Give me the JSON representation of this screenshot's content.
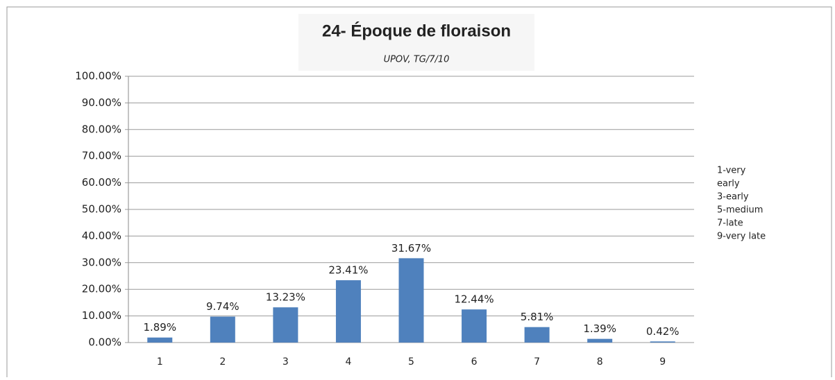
{
  "chart_data": {
    "type": "bar",
    "title": "24- Époque de floraison",
    "subtitle": "UPOV, TG/7/10",
    "categories": [
      "1",
      "2",
      "3",
      "4",
      "5",
      "6",
      "7",
      "8",
      "9"
    ],
    "values": [
      1.89,
      9.74,
      13.23,
      23.41,
      31.67,
      12.44,
      5.81,
      1.39,
      0.42
    ],
    "value_labels": [
      "1.89%",
      "9.74%",
      "13.23%",
      "23.41%",
      "31.67%",
      "12.44%",
      "5.81%",
      "1.39%",
      "0.42%"
    ],
    "color": "#4f81bd",
    "ylim": [
      0,
      100
    ],
    "yticks": [
      {
        "value": 0,
        "label": "0.00%"
      },
      {
        "value": 10,
        "label": "10.00%"
      },
      {
        "value": 20,
        "label": "20.00%"
      },
      {
        "value": 30,
        "label": "30.00%"
      },
      {
        "value": 40,
        "label": "40.00%"
      },
      {
        "value": 50,
        "label": "50.00%"
      },
      {
        "value": 60,
        "label": "60.00%"
      },
      {
        "value": 70,
        "label": "70.00%"
      },
      {
        "value": 80,
        "label": "80.00%"
      },
      {
        "value": 90,
        "label": "90.00%"
      },
      {
        "value": 100,
        "label": "100.00%"
      }
    ],
    "grid": true,
    "annotation": [
      "1-very",
      "early",
      "3-early",
      "5-medium",
      "7-late",
      "9-very late"
    ]
  }
}
